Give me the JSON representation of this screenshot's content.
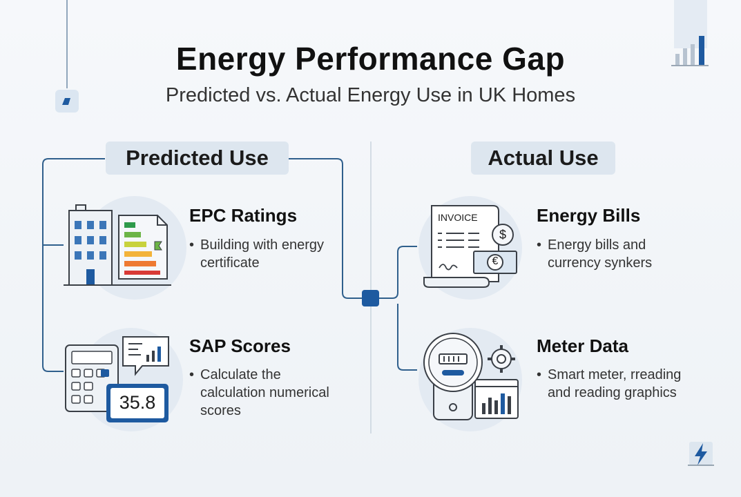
{
  "header": {
    "title": "Energy Performance Gap",
    "subtitle": "Predicted vs. Actual Energy Use in UK Homes"
  },
  "predicted": {
    "label": "Predicted Use",
    "epc": {
      "title": "EPC Ratings",
      "desc": "Building with energy certificate"
    },
    "sap": {
      "title": "SAP Scores",
      "desc": "Calculate the calculation numerical scores",
      "score": "35.8"
    }
  },
  "actual": {
    "label": "Actual Use",
    "bills": {
      "title": "Energy Bills",
      "desc": "Energy bills and currency synkers",
      "invoice_label": "INVOICE",
      "dollar": "$",
      "euro": "€"
    },
    "meter": {
      "title": "Meter Data",
      "desc": "Smart meter, rreading and reading graphics"
    }
  },
  "colors": {
    "accent": "#1e5aa0",
    "line": "#2f5f8c",
    "pill": "#dde6ef",
    "circle": "#e3eaf2"
  }
}
